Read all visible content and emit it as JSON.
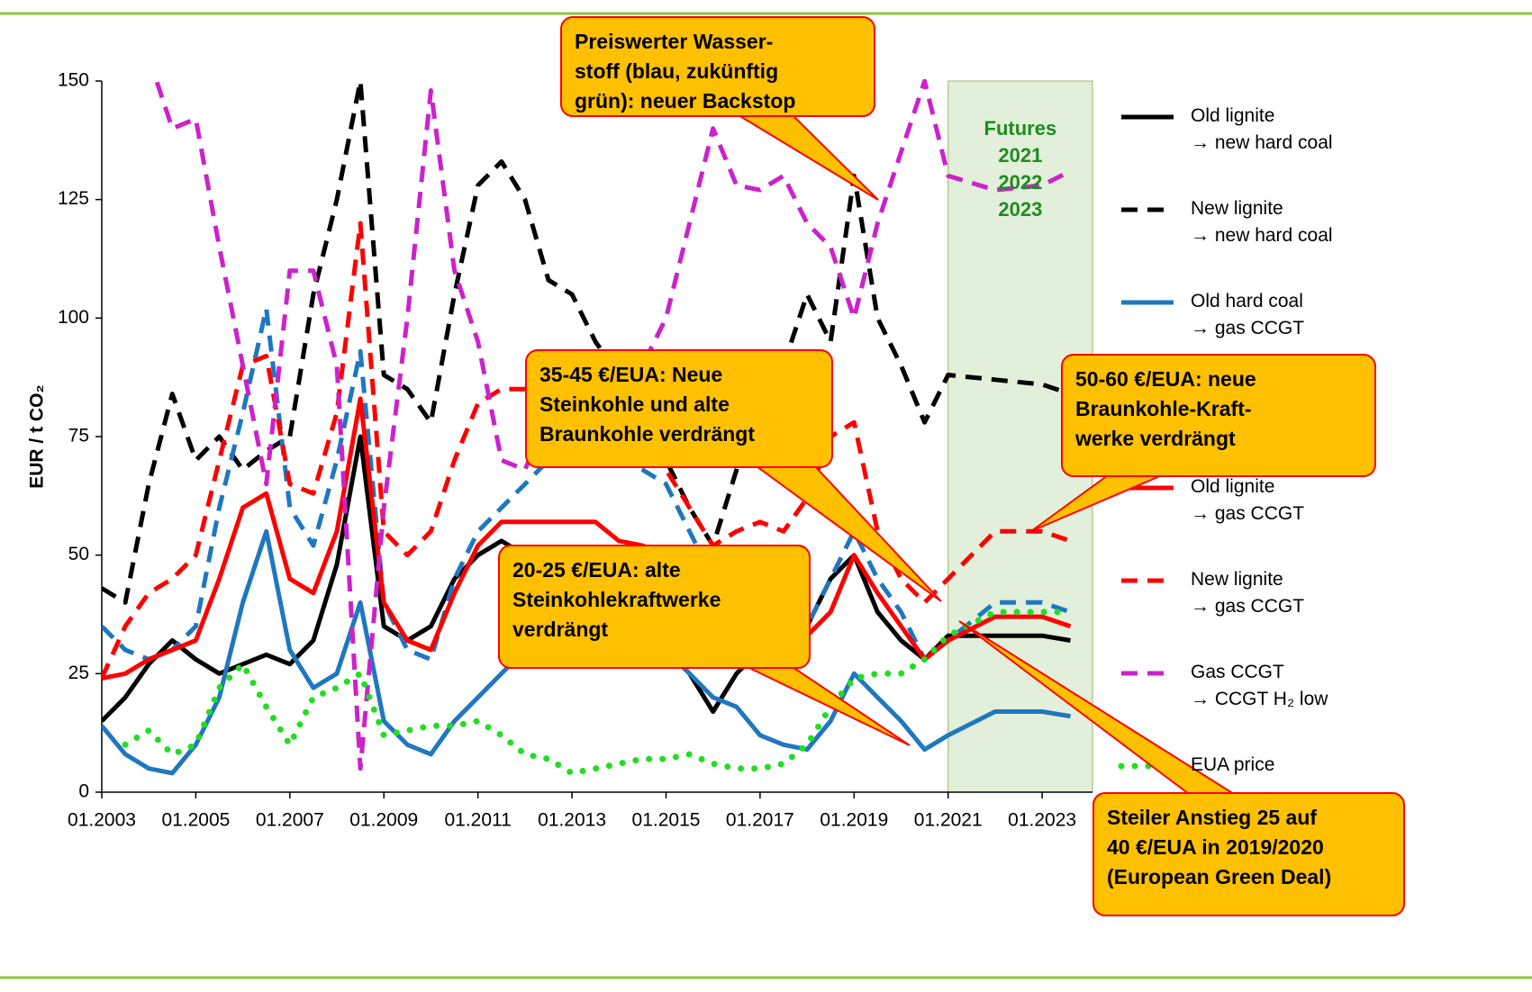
{
  "chart_data": {
    "type": "line",
    "y_label": "EUR / t CO₂",
    "xlim": [
      2003,
      2024.07
    ],
    "xticks": [
      {
        "value": 2003,
        "label": "01.2003"
      },
      {
        "value": 2005,
        "label": "01.2005"
      },
      {
        "value": 2007,
        "label": "01.2007"
      },
      {
        "value": 2009,
        "label": "01.2009"
      },
      {
        "value": 2011,
        "label": "01.2011"
      },
      {
        "value": 2013,
        "label": "01.2013"
      },
      {
        "value": 2015,
        "label": "01.2015"
      },
      {
        "value": 2017,
        "label": "01.2017"
      },
      {
        "value": 2019,
        "label": "01.2019"
      },
      {
        "value": 2021,
        "label": "01.2021"
      },
      {
        "value": 2023,
        "label": "01.2023"
      }
    ],
    "ylim": [
      0,
      150
    ],
    "yticks": [
      0,
      25,
      50,
      75,
      100,
      125,
      150
    ],
    "futures_label": "Futures\n2021\n2022\n2023",
    "futures_from": 2021,
    "x": [
      2003,
      2003.5,
      2004,
      2004.5,
      2005,
      2005.5,
      2006,
      2006.5,
      2007,
      2007.5,
      2008,
      2008.5,
      2009,
      2009.5,
      2010,
      2010.5,
      2011,
      2011.5,
      2012,
      2012.5,
      2013,
      2013.5,
      2014,
      2014.5,
      2015,
      2015.5,
      2016,
      2016.5,
      2017,
      2017.5,
      2018,
      2018.5,
      2019,
      2019.5,
      2020,
      2020.5,
      2021,
      2022,
      2023,
      2023.6
    ],
    "series": [
      {
        "name": "Old lignite\n→ new hard coal",
        "color": "#000000",
        "style": "solid",
        "values": [
          15,
          20,
          27,
          32,
          28,
          25,
          27,
          29,
          27,
          32,
          48,
          75,
          35,
          32,
          35,
          45,
          50,
          53,
          50,
          45,
          42,
          40,
          38,
          35,
          30,
          25,
          17,
          25,
          30,
          32,
          35,
          45,
          50,
          38,
          32,
          28,
          33,
          33,
          33,
          32
        ]
      },
      {
        "name": "New lignite\n→ new hard coal",
        "color": "#000000",
        "style": "dashed",
        "values": [
          43,
          40,
          65,
          84,
          70,
          75,
          68,
          72,
          75,
          105,
          125,
          150,
          88,
          85,
          78,
          105,
          128,
          133,
          125,
          108,
          105,
          95,
          88,
          85,
          70,
          60,
          52,
          68,
          85,
          90,
          105,
          95,
          130,
          100,
          90,
          78,
          88,
          87,
          86,
          84
        ]
      },
      {
        "name": "Old hard coal\n→ gas CCGT",
        "color": "#1f77c0",
        "style": "solid",
        "values": [
          14,
          8,
          5,
          4,
          10,
          20,
          40,
          55,
          30,
          22,
          25,
          40,
          15,
          10,
          8,
          15,
          20,
          25,
          30,
          35,
          40,
          40,
          38,
          35,
          30,
          25,
          20,
          18,
          12,
          10,
          9,
          15,
          25,
          20,
          15,
          9,
          12,
          17,
          17,
          16
        ]
      },
      {
        "color": "#1f77c0",
        "style": "dashed",
        "values": [
          35,
          30,
          28,
          30,
          35,
          60,
          80,
          102,
          60,
          52,
          70,
          93,
          40,
          30,
          28,
          45,
          55,
          60,
          65,
          70,
          75,
          72,
          70,
          68,
          65,
          55,
          45,
          42,
          35,
          33,
          35,
          45,
          55,
          45,
          38,
          28,
          32,
          40,
          40,
          38
        ]
      },
      {
        "name": "Old lignite\n→ gas CCGT",
        "color": "#ff0000",
        "style": "solid",
        "values": [
          24,
          25,
          28,
          30,
          32,
          45,
          60,
          63,
          45,
          42,
          55,
          83,
          40,
          32,
          30,
          42,
          52,
          57,
          57,
          57,
          57,
          57,
          53,
          52,
          50,
          45,
          40,
          38,
          35,
          34,
          33,
          38,
          50,
          42,
          35,
          28,
          32,
          37,
          37,
          35
        ]
      },
      {
        "name": "New lignite\n→ gas CCGT",
        "color": "#ff0000",
        "style": "dashed",
        "values": [
          24,
          35,
          42,
          45,
          50,
          70,
          90,
          92,
          65,
          63,
          80,
          120,
          55,
          50,
          55,
          70,
          82,
          85,
          85,
          82,
          80,
          78,
          75,
          72,
          68,
          60,
          52,
          55,
          57,
          55,
          62,
          75,
          78,
          55,
          45,
          40,
          45,
          55,
          55,
          53
        ]
      },
      {
        "name": "Gas CCGT\n→ CCGT H₂ low",
        "color": "#cc22cc",
        "style": "dashed",
        "values": [
          null,
          null,
          155,
          140,
          142,
          115,
          90,
          65,
          110,
          110,
          90,
          5,
          60,
          100,
          148,
          110,
          95,
          70,
          68,
          80,
          85,
          90,
          92,
          90,
          100,
          120,
          140,
          128,
          127,
          130,
          120,
          115,
          100,
          120,
          135,
          150,
          130,
          127,
          128,
          131
        ]
      },
      {
        "name": "EUA price",
        "color": "#22dd22",
        "style": "dotted",
        "values": [
          null,
          10,
          13,
          8,
          10,
          22,
          27,
          18,
          10,
          20,
          22,
          25,
          12,
          13,
          14,
          14,
          15,
          12,
          8,
          7,
          4,
          5,
          6,
          7,
          7,
          8,
          6,
          5,
          5,
          6,
          10,
          18,
          24,
          25,
          25,
          28,
          33,
          38,
          38,
          38
        ]
      }
    ],
    "annotations": [
      "Preiswerter Wasser-\nstoff (blau, zukünftig\ngrün): neuer Backstop",
      "35-45 €/EUA: Neue\nSteinkohle und alte\nBraunkohle verdrängt",
      "50-60 €/EUA: neue\nBraunkohle-Kraft-\nwerke verdrängt",
      "20-25 €/EUA: alte\nSteinkohlekraftwerke\nverdrängt",
      "Steiler Anstieg 25 auf\n40 €/EUA in 2019/2020\n(European Green Deal)"
    ]
  }
}
